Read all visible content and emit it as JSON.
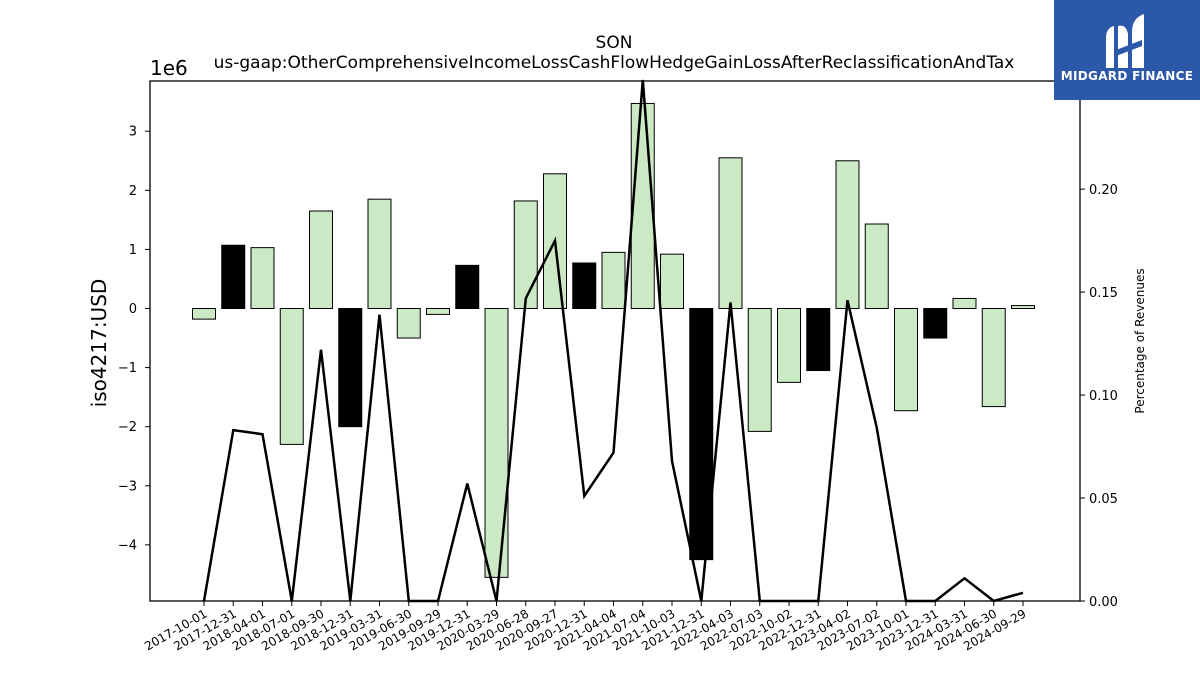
{
  "chart_data": {
    "type": "bar",
    "title": "SON",
    "subtitle": "us-gaap:OtherComprehensiveIncomeLossCashFlowHedgeGainLossAfterReclassificationAndTax",
    "ylabel": "iso4217:USD",
    "y2label": "Percentage of Revenues",
    "y_offset_label": "1e6",
    "ylim": [
      -4.95,
      3.85
    ],
    "y2lim": [
      0.0,
      0.2525
    ],
    "yticks": [
      "−4",
      "−3",
      "−2",
      "−1",
      "0",
      "1",
      "2",
      "3"
    ],
    "yticks_values": [
      -4,
      -3,
      -2,
      -1,
      0,
      1,
      2,
      3
    ],
    "y2ticks": [
      "0.00",
      "0.05",
      "0.10",
      "0.15",
      "0.20",
      "0.25"
    ],
    "y2ticks_values": [
      0.0,
      0.05,
      0.1,
      0.15,
      0.2,
      0.25
    ],
    "categories": [
      "2017-10-01",
      "2017-12-31",
      "2018-04-01",
      "2018-07-01",
      "2018-09-30",
      "2018-12-31",
      "2019-03-31",
      "2019-06-30",
      "2019-09-29",
      "2019-12-31",
      "2020-03-29",
      "2020-06-28",
      "2020-09-27",
      "2020-12-31",
      "2021-04-04",
      "2021-07-04",
      "2021-10-03",
      "2021-12-31",
      "2022-04-03",
      "2022-07-03",
      "2022-10-02",
      "2022-12-31",
      "2023-04-02",
      "2023-07-02",
      "2023-10-01",
      "2023-12-31",
      "2024-03-31",
      "2024-06-30",
      "2024-09-29"
    ],
    "series": [
      {
        "values": [
          -0.18,
          1.07,
          1.03,
          -2.3,
          1.65,
          -2.0,
          1.85,
          -0.5,
          -0.1,
          0.73,
          -4.55,
          1.82,
          2.28,
          0.77,
          0.95,
          3.47,
          0.92,
          -4.25,
          2.55,
          -2.08,
          -1.25,
          -1.05,
          2.5,
          1.43,
          -1.73,
          -0.5,
          0.17,
          -1.66,
          0.05
        ],
        "is_year_end": [
          false,
          true,
          false,
          false,
          false,
          true,
          false,
          false,
          false,
          true,
          false,
          false,
          false,
          true,
          false,
          false,
          false,
          true,
          false,
          false,
          false,
          true,
          false,
          false,
          false,
          true,
          false,
          false,
          false
        ]
      },
      {
        "values": [
          0.0,
          0.083,
          0.081,
          0.0,
          0.122,
          0.0,
          0.139,
          0.0,
          0.0,
          0.057,
          0.0,
          0.147,
          0.175,
          0.051,
          0.072,
          0.253,
          0.068,
          0.0,
          0.145,
          0.0,
          0.0,
          0.0,
          0.146,
          0.084,
          0.0,
          0.0,
          0.011,
          0.0,
          0.004
        ]
      }
    ],
    "colors": {
      "bar_positive": "#cce9c6",
      "bar_year_end": "#000000",
      "bar_edge": "#000000",
      "line": "#000000"
    },
    "grid": false
  },
  "logo": {
    "text": "MIDGARD FINANCE",
    "background": "#2b58a8"
  }
}
